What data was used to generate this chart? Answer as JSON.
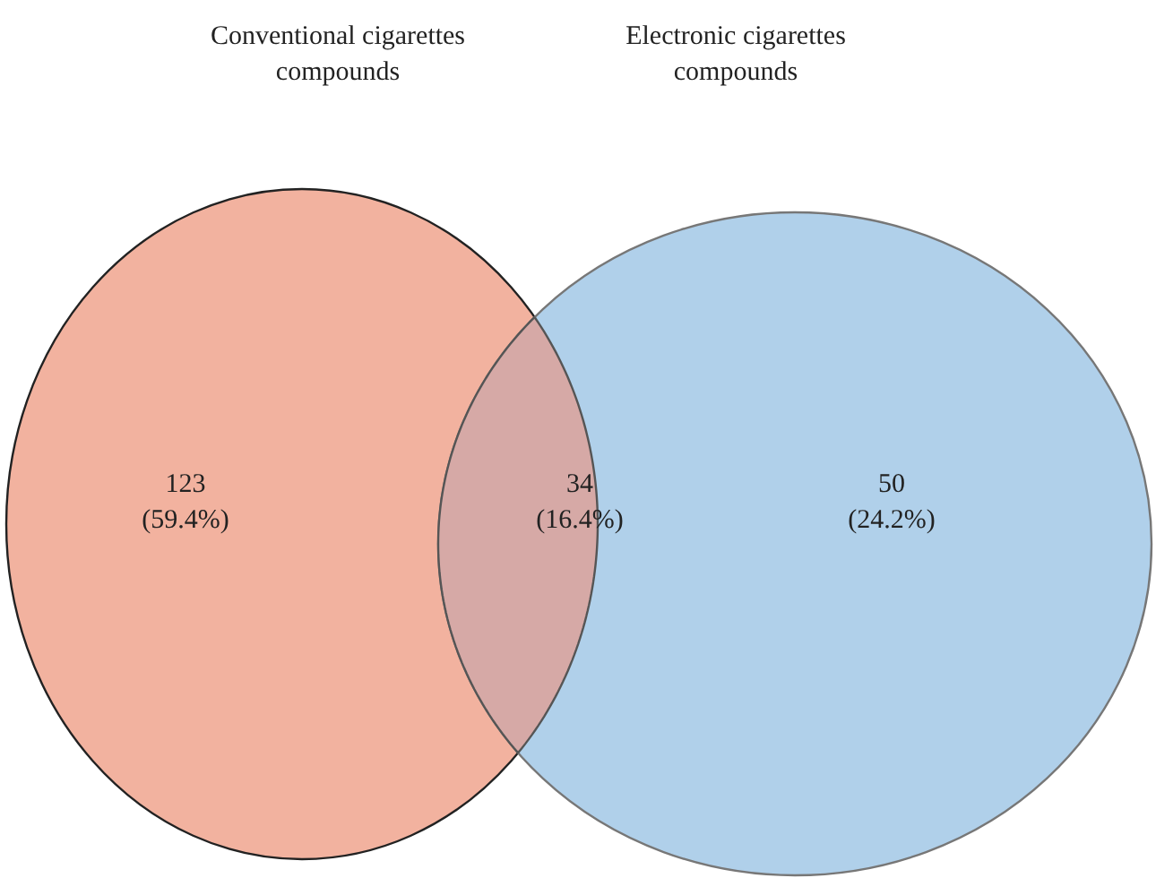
{
  "chart_data": {
    "type": "other",
    "annotations": [
      "Conventional cigarettes\ncompounds",
      "Electronic cigarettes\ncompounds"
    ],
    "categories": [
      null,
      null,
      null
    ],
    "values": [
      123,
      34,
      50
    ],
    "value_labels": [
      "123\n(59.4%)",
      "34\n(16.4%)",
      "50\n(24.2%)"
    ],
    "colors": [
      "#f2b29f",
      "#d6a9a6",
      "#b0d0ea"
    ]
  }
}
